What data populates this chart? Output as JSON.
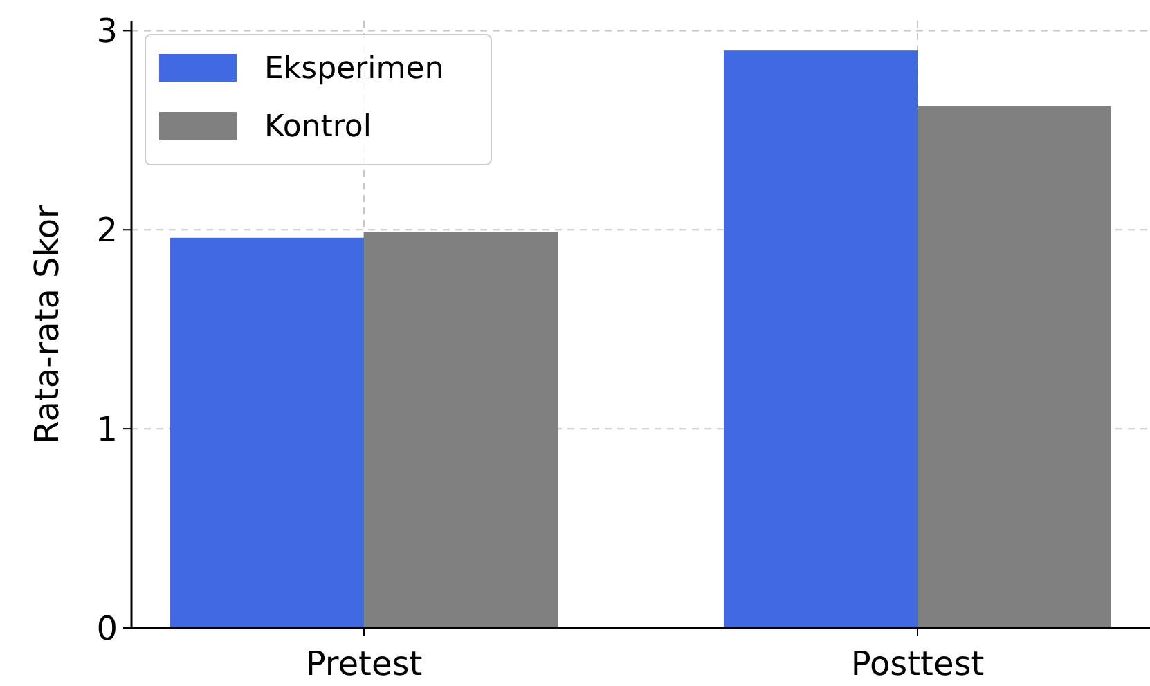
{
  "chart_data": {
    "type": "bar",
    "ylabel": "Rata-rata Skor",
    "categories": [
      "Pretest",
      "Posttest"
    ],
    "series": [
      {
        "name": "Eksperimen",
        "color": "#4169e1",
        "values": [
          1.96,
          2.9
        ]
      },
      {
        "name": "Kontrol",
        "color": "#808080",
        "values": [
          1.99,
          2.62
        ]
      }
    ],
    "ylim": [
      0,
      3.05
    ],
    "yticks": [
      0,
      1,
      2,
      3
    ],
    "grid": true,
    "legend": "top left"
  }
}
